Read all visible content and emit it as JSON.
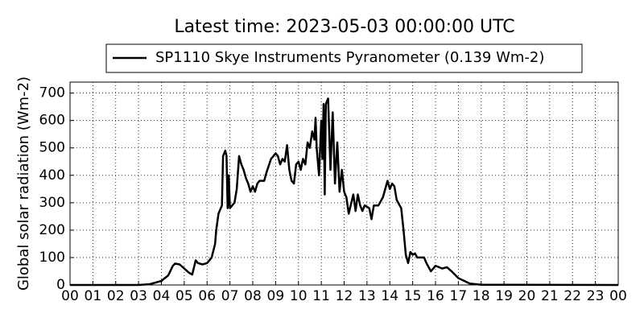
{
  "chart_data": {
    "type": "line",
    "title": "Latest time: 2023-05-03 00:00:00 UTC",
    "y_label": "Global solar radiation (Wm-2)",
    "grid": true,
    "legend": "top",
    "xlim": [
      0,
      24
    ],
    "xticks": [
      {
        "value": 0,
        "label": "00"
      },
      {
        "value": 1,
        "label": "01"
      },
      {
        "value": 2,
        "label": "02"
      },
      {
        "value": 3,
        "label": "03"
      },
      {
        "value": 4,
        "label": "04"
      },
      {
        "value": 5,
        "label": "05"
      },
      {
        "value": 6,
        "label": "06"
      },
      {
        "value": 7,
        "label": "07"
      },
      {
        "value": 8,
        "label": "08"
      },
      {
        "value": 9,
        "label": "09"
      },
      {
        "value": 10,
        "label": "10"
      },
      {
        "value": 11,
        "label": "11"
      },
      {
        "value": 12,
        "label": "12"
      },
      {
        "value": 13,
        "label": "13"
      },
      {
        "value": 14,
        "label": "14"
      },
      {
        "value": 15,
        "label": "15"
      },
      {
        "value": 16,
        "label": "16"
      },
      {
        "value": 17,
        "label": "17"
      },
      {
        "value": 18,
        "label": "18"
      },
      {
        "value": 19,
        "label": "19"
      },
      {
        "value": 20,
        "label": "20"
      },
      {
        "value": 21,
        "label": "21"
      },
      {
        "value": 22,
        "label": "22"
      },
      {
        "value": 23,
        "label": "23"
      },
      {
        "value": 24,
        "label": "00"
      }
    ],
    "ylim": [
      0,
      740
    ],
    "yticks": [
      0,
      100,
      200,
      300,
      400,
      500,
      600,
      700
    ],
    "x": [
      0,
      3,
      3.5,
      4,
      4.3,
      4.5,
      4.6,
      4.8,
      5,
      5.2,
      5.35,
      5.5,
      5.6,
      5.8,
      6,
      6.2,
      6.35,
      6.4,
      6.5,
      6.65,
      6.7,
      6.8,
      6.85,
      6.9,
      6.95,
      7,
      7.2,
      7.3,
      7.4,
      7.5,
      7.6,
      7.7,
      7.8,
      7.9,
      8,
      8.1,
      8.2,
      8.3,
      8.5,
      8.6,
      8.8,
      9,
      9.1,
      9.2,
      9.3,
      9.4,
      9.5,
      9.6,
      9.7,
      9.8,
      9.9,
      10,
      10.1,
      10.2,
      10.3,
      10.4,
      10.5,
      10.6,
      10.7,
      10.75,
      10.8,
      10.9,
      11,
      11.05,
      11.1,
      11.15,
      11.2,
      11.3,
      11.4,
      11.5,
      11.6,
      11.7,
      11.8,
      11.9,
      12,
      12.1,
      12.2,
      12.4,
      12.5,
      12.6,
      12.7,
      12.8,
      12.9,
      13.1,
      13.2,
      13.3,
      13.5,
      13.7,
      13.9,
      14,
      14.1,
      14.2,
      14.3,
      14.5,
      14.6,
      14.7,
      14.8,
      14.9,
      15,
      15.1,
      15.2,
      15.5,
      15.6,
      15.8,
      16,
      16.3,
      16.5,
      16.7,
      17,
      17.5,
      18,
      24
    ],
    "series": [
      {
        "name": "SP1110 Skye Instruments Pyranometer (0.139 Wm-2)",
        "color": "#000000",
        "values": [
          0,
          0,
          3,
          15,
          35,
          70,
          78,
          75,
          60,
          45,
          38,
          90,
          80,
          75,
          80,
          100,
          150,
          200,
          260,
          290,
          470,
          490,
          470,
          280,
          400,
          280,
          300,
          350,
          470,
          440,
          420,
          390,
          370,
          340,
          360,
          340,
          370,
          380,
          380,
          410,
          460,
          480,
          470,
          440,
          460,
          450,
          510,
          420,
          380,
          370,
          440,
          450,
          420,
          460,
          440,
          520,
          500,
          560,
          530,
          610,
          500,
          400,
          600,
          460,
          660,
          330,
          660,
          680,
          420,
          630,
          370,
          520,
          340,
          420,
          340,
          320,
          260,
          330,
          270,
          330,
          290,
          270,
          290,
          280,
          240,
          290,
          290,
          320,
          380,
          350,
          370,
          360,
          310,
          280,
          200,
          110,
          80,
          120,
          110,
          115,
          100,
          100,
          80,
          50,
          70,
          60,
          65,
          50,
          25,
          5,
          1,
          0
        ]
      }
    ]
  }
}
